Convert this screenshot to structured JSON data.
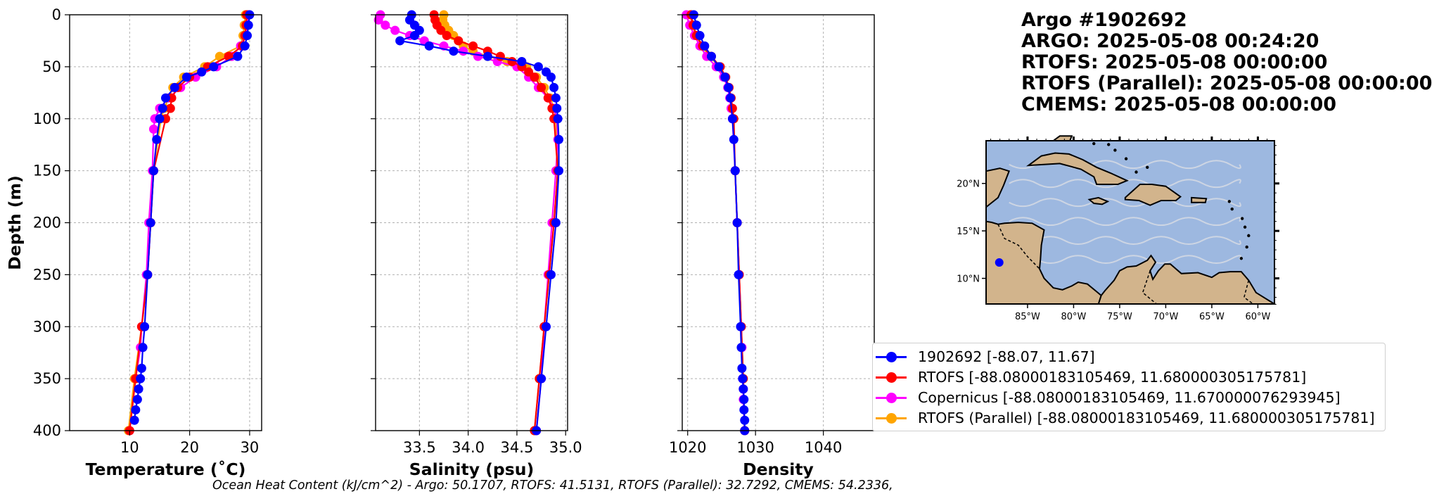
{
  "title_lines": [
    "Argo #1902692",
    "ARGO:  2025-05-08 00:24:20",
    "RTOFS: 2025-05-08 00:00:00",
    "RTOFS (Parallel): 2025-05-08 00:00:00",
    "CMEMS: 2025-05-08 00:00:00"
  ],
  "footer_text": "Ocean Heat Content (kJ/cm^2) - Argo: 50.1707,  RTOFS: 41.5131,  RTOFS (Parallel): 32.7292,  CMEMS: 54.2336,",
  "colors": {
    "argo": "#0000ff",
    "rtofs": "#ff0000",
    "copernicus": "#ff00ff",
    "parallel": "#ffa500"
  },
  "legend": [
    {
      "label": "1902692 [-88.07, 11.67]",
      "color": "#0000ff"
    },
    {
      "label": "RTOFS [-88.08000183105469, 11.680000305175781]",
      "color": "#ff0000"
    },
    {
      "label": "Copernicus [-88.08000183105469, 11.670000076293945]",
      "color": "#ff00ff"
    },
    {
      "label": "RTOFS (Parallel) [-88.08000183105469, 11.680000305175781]",
      "color": "#ffa500"
    }
  ],
  "map": {
    "lat_ticks": [
      "20°N",
      "15°N",
      "10°N"
    ],
    "lon_ticks": [
      "85°W",
      "80°W",
      "75°W",
      "70°W",
      "65°W",
      "60°W"
    ],
    "ocean_color": "#9db8e0",
    "land_color": "#d2b48c",
    "float_lon": -88.07,
    "float_lat": 11.67
  },
  "chart_data": [
    {
      "type": "line",
      "xlabel": "Temperature (˚C)",
      "ylabel": "Depth (m)",
      "xlim": [
        0,
        32
      ],
      "ylim": [
        400,
        0
      ],
      "grid": true,
      "x_ticks": [
        10,
        20,
        30
      ],
      "y_ticks": [
        0,
        50,
        100,
        150,
        200,
        250,
        300,
        350,
        400
      ],
      "series": [
        {
          "name": "1902692",
          "depth": [
            0,
            10,
            20,
            30,
            40,
            50,
            55,
            60,
            70,
            80,
            90,
            100,
            120,
            150,
            200,
            250,
            300,
            320,
            340,
            350,
            360,
            370,
            380,
            390
          ],
          "values": [
            30.0,
            29.8,
            29.6,
            29.2,
            28.0,
            24.0,
            22.0,
            19.5,
            17.5,
            16.0,
            15.5,
            15.0,
            14.5,
            14.0,
            13.5,
            13.0,
            12.5,
            12.2,
            12.0,
            11.8,
            11.5,
            11.3,
            11.0,
            10.8
          ]
        },
        {
          "name": "RTOFS",
          "depth": [
            0,
            10,
            20,
            30,
            40,
            50,
            60,
            70,
            80,
            90,
            100,
            150,
            200,
            250,
            300,
            350,
            400
          ],
          "values": [
            29.5,
            29.4,
            29.2,
            28.8,
            26.5,
            23.0,
            20.0,
            18.0,
            17.0,
            16.8,
            16.0,
            14.0,
            13.5,
            13.0,
            12.0,
            11.0,
            10.0
          ]
        },
        {
          "name": "Copernicus",
          "depth": [
            0,
            10,
            20,
            30,
            40,
            50,
            60,
            70,
            80,
            90,
            100,
            110,
            150,
            200,
            250,
            300,
            320,
            350,
            400
          ],
          "values": [
            29.8,
            29.6,
            29.3,
            28.5,
            27.0,
            24.5,
            21.0,
            18.5,
            16.5,
            15.0,
            14.2,
            14.0,
            13.8,
            13.2,
            12.8,
            12.0,
            11.8,
            11.0,
            10.0
          ]
        },
        {
          "name": "RTOFS (Parallel)",
          "depth": [
            0,
            10,
            20,
            30,
            40,
            50,
            60,
            70,
            80,
            90,
            100,
            150,
            200,
            250,
            300,
            350,
            400
          ],
          "values": [
            29.3,
            29.1,
            28.9,
            28.5,
            25.0,
            22.5,
            19.0,
            17.2,
            16.5,
            15.8,
            15.2,
            14.0,
            13.5,
            13.0,
            12.0,
            10.8,
            9.8
          ]
        }
      ]
    },
    {
      "type": "line",
      "xlabel": "Salinity (psu)",
      "ylabel": "",
      "xlim": [
        33.05,
        35.02
      ],
      "ylim": [
        400,
        0
      ],
      "grid": true,
      "x_ticks": [
        33.5,
        34.0,
        34.5,
        35.0
      ],
      "y_ticks": [
        0,
        50,
        100,
        150,
        200,
        250,
        300,
        350,
        400
      ],
      "series": [
        {
          "name": "1902692",
          "depth": [
            0,
            5,
            10,
            15,
            20,
            25,
            30,
            35,
            40,
            45,
            50,
            55,
            60,
            70,
            80,
            90,
            100,
            120,
            150,
            200,
            250,
            300,
            350,
            400
          ],
          "values": [
            33.42,
            33.4,
            33.45,
            33.5,
            33.45,
            33.3,
            33.6,
            33.85,
            34.2,
            34.55,
            34.72,
            34.8,
            34.85,
            34.88,
            34.9,
            34.91,
            34.92,
            34.93,
            34.93,
            34.9,
            34.85,
            34.8,
            34.75,
            34.7
          ]
        },
        {
          "name": "RTOFS",
          "depth": [
            0,
            5,
            10,
            15,
            20,
            25,
            30,
            35,
            40,
            45,
            50,
            55,
            60,
            70,
            80,
            90,
            100,
            150,
            200,
            250,
            300,
            350,
            400
          ],
          "values": [
            33.65,
            33.66,
            33.68,
            33.72,
            33.78,
            33.9,
            34.05,
            34.2,
            34.33,
            34.45,
            34.55,
            34.62,
            34.68,
            34.75,
            34.82,
            34.86,
            34.88,
            34.92,
            34.88,
            34.83,
            34.78,
            34.73,
            34.68
          ]
        },
        {
          "name": "Copernicus",
          "depth": [
            0,
            5,
            10,
            15,
            20,
            25,
            30,
            35,
            40,
            45,
            50,
            60,
            70,
            80,
            90,
            100,
            120,
            150,
            200,
            250,
            300,
            350,
            400
          ],
          "values": [
            33.1,
            33.08,
            33.15,
            33.25,
            33.4,
            33.55,
            33.75,
            33.95,
            34.1,
            34.3,
            34.5,
            34.62,
            34.72,
            34.82,
            34.88,
            34.91,
            34.92,
            34.9,
            34.86,
            34.82,
            34.78,
            34.75,
            34.7
          ]
        },
        {
          "name": "RTOFS (Parallel)",
          "depth": [
            0,
            5,
            10,
            15,
            20,
            25,
            30,
            35,
            40,
            45,
            50,
            60,
            70,
            80,
            90,
            100,
            150,
            200,
            250,
            300,
            350,
            400
          ],
          "values": [
            33.75,
            33.74,
            33.76,
            33.8,
            33.85,
            33.9,
            33.95,
            34.05,
            34.2,
            34.4,
            34.6,
            34.7,
            34.78,
            34.84,
            34.88,
            34.9,
            34.92,
            34.88,
            34.83,
            34.78,
            34.73,
            34.68
          ]
        }
      ]
    },
    {
      "type": "line",
      "xlabel": "Density",
      "ylabel": "",
      "xlim": [
        1019.2,
        1047.5
      ],
      "ylim": [
        400,
        0
      ],
      "grid": true,
      "x_ticks": [
        1020,
        1030,
        1040
      ],
      "y_ticks": [
        0,
        50,
        100,
        150,
        200,
        250,
        300,
        350,
        400
      ],
      "series": [
        {
          "name": "1902692",
          "depth": [
            0,
            10,
            20,
            30,
            40,
            50,
            60,
            70,
            80,
            100,
            120,
            150,
            200,
            250,
            300,
            320,
            340,
            350,
            360,
            370,
            380,
            390,
            400
          ],
          "values": [
            1020.9,
            1021.3,
            1021.8,
            1022.5,
            1023.5,
            1024.6,
            1025.5,
            1026.0,
            1026.3,
            1026.6,
            1026.8,
            1027.0,
            1027.3,
            1027.5,
            1027.8,
            1027.9,
            1028.0,
            1028.1,
            1028.2,
            1028.3,
            1028.3,
            1028.4,
            1028.4
          ]
        },
        {
          "name": "RTOFS",
          "depth": [
            0,
            10,
            20,
            30,
            40,
            50,
            60,
            70,
            80,
            90,
            100,
            150,
            200,
            250,
            300,
            350,
            400
          ],
          "values": [
            1020.5,
            1020.8,
            1021.3,
            1022.2,
            1023.5,
            1024.8,
            1025.6,
            1026.1,
            1026.4,
            1026.6,
            1026.8,
            1027.0,
            1027.3,
            1027.6,
            1027.9,
            1028.2,
            1028.4
          ]
        },
        {
          "name": "Copernicus",
          "depth": [
            0,
            10,
            20,
            30,
            40,
            50,
            60,
            70,
            80,
            90,
            100,
            150,
            200,
            250,
            300,
            320,
            350,
            360,
            370,
            400
          ],
          "values": [
            1019.8,
            1020.3,
            1021.0,
            1021.8,
            1022.8,
            1024.2,
            1025.3,
            1025.9,
            1026.2,
            1026.4,
            1026.6,
            1027.0,
            1027.3,
            1027.6,
            1027.9,
            1028.0,
            1028.1,
            1028.2,
            1028.2,
            1028.4
          ]
        },
        {
          "name": "RTOFS (Parallel)",
          "depth": [
            0,
            10,
            20,
            30,
            40,
            50,
            60,
            70,
            80,
            90,
            100,
            150,
            200,
            250,
            300,
            350,
            400
          ],
          "values": [
            1020.4,
            1020.7,
            1021.2,
            1022.0,
            1023.3,
            1024.6,
            1025.4,
            1026.0,
            1026.3,
            1026.5,
            1026.7,
            1027.0,
            1027.3,
            1027.6,
            1027.9,
            1028.2,
            1028.4
          ]
        }
      ]
    }
  ]
}
